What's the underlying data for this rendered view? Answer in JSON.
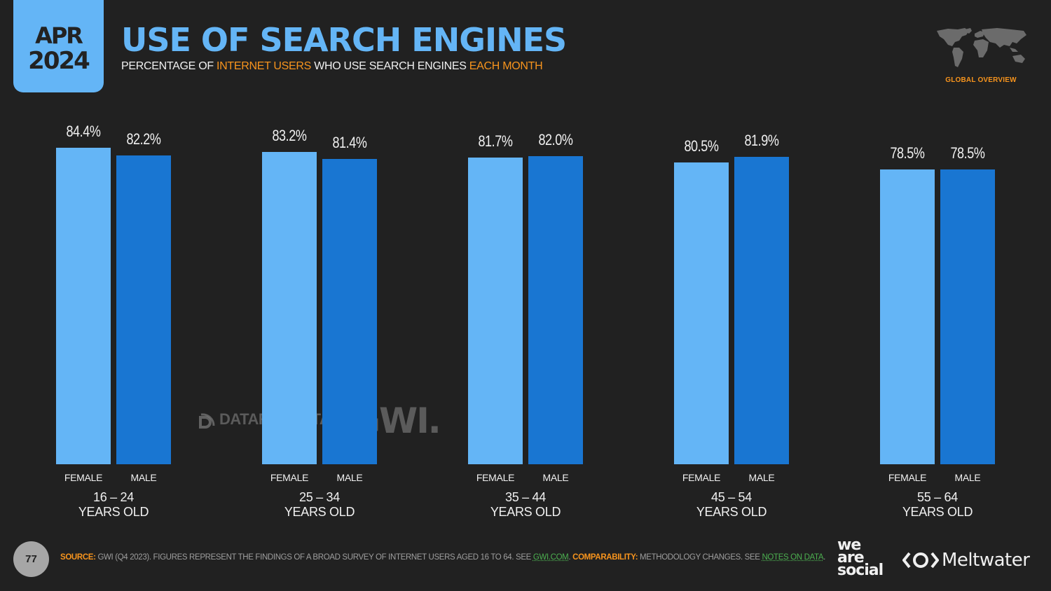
{
  "header": {
    "date_month": "APR",
    "date_year": "2024",
    "title": "USE OF SEARCH ENGINES",
    "subtitle_parts": [
      "PERCENTAGE OF ",
      "INTERNET USERS",
      " WHO USE SEARCH ENGINES ",
      "EACH MONTH"
    ],
    "region_label": "GLOBAL OVERVIEW",
    "map_icon": "world-map-icon"
  },
  "colors": {
    "background": "#212121",
    "accent_blue": "#64b5f6",
    "female_bar": "#64b5f6",
    "male_bar": "#1976d2",
    "highlight_orange": "#f7941d",
    "link_green": "#4caf50"
  },
  "chart_data": {
    "type": "bar",
    "title": "USE OF SEARCH ENGINES",
    "subtitle": "PERCENTAGE OF INTERNET USERS WHO USE SEARCH ENGINES EACH MONTH",
    "categories": [
      "16 – 24 YEARS OLD",
      "25 – 34 YEARS OLD",
      "35 – 44 YEARS OLD",
      "45 – 54 YEARS OLD",
      "55 – 64 YEARS OLD"
    ],
    "series": [
      {
        "name": "FEMALE",
        "values": [
          84.4,
          83.2,
          81.7,
          80.5,
          78.5
        ]
      },
      {
        "name": "MALE",
        "values": [
          82.2,
          81.4,
          82.0,
          81.9,
          78.5
        ]
      }
    ],
    "xlabel": "",
    "ylabel": "",
    "ylim": [
      0,
      100
    ],
    "grid": false,
    "legend": "none (labels under bars)"
  },
  "groups": [
    {
      "age_range": "16 – 24",
      "age_suffix": "YEARS OLD",
      "female_label": "FEMALE",
      "male_label": "MALE",
      "female_value": "84.4%",
      "male_value": "82.2%"
    },
    {
      "age_range": "25 – 34",
      "age_suffix": "YEARS OLD",
      "female_label": "FEMALE",
      "male_label": "MALE",
      "female_value": "83.2%",
      "male_value": "81.4%"
    },
    {
      "age_range": "35 – 44",
      "age_suffix": "YEARS OLD",
      "female_label": "FEMALE",
      "male_label": "MALE",
      "female_value": "81.7%",
      "male_value": "82.0%"
    },
    {
      "age_range": "45 – 54",
      "age_suffix": "YEARS OLD",
      "female_label": "FEMALE",
      "male_label": "MALE",
      "female_value": "80.5%",
      "male_value": "81.9%"
    },
    {
      "age_range": "55 – 64",
      "age_suffix": "YEARS OLD",
      "female_label": "FEMALE",
      "male_label": "MALE",
      "female_value": "78.5%",
      "male_value": "78.5%"
    }
  ],
  "watermarks": {
    "datareportal": "DATAREPORTAL",
    "gwi": "GWI."
  },
  "footer": {
    "page_number": "77",
    "source_label": "SOURCE:",
    "source_text": " GWI (Q4 2023). FIGURES REPRESENT THE FINDINGS OF A BROAD SURVEY OF INTERNET USERS AGED 16 TO 64. SEE ",
    "source_link": "GWI.COM",
    "comparability_label": "COMPARABILITY:",
    "comparability_text": " METHODOLOGY CHANGES. SEE ",
    "notes_link": "NOTES ON DATA",
    "brand_1": [
      "we",
      "are",
      "social"
    ],
    "brand_2": "Meltwater"
  }
}
